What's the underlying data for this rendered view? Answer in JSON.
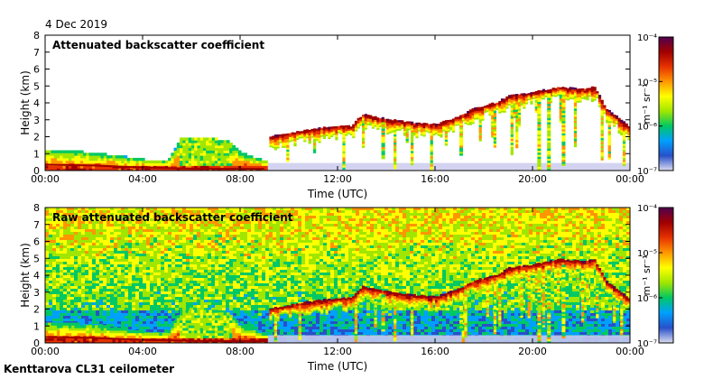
{
  "date": "4 Dec 2019",
  "footer": "Kenttarova CL31 ceilometer",
  "colors": {
    "ramp": [
      "#dcdcf0",
      "#2850c8",
      "#00a0ff",
      "#00c864",
      "#a0e600",
      "#ffff00",
      "#ff9600",
      "#e63200",
      "#a00000",
      "#500050"
    ],
    "panel_bg": "#ffffff",
    "ground_band": "#c8c8ee"
  },
  "chart_data": [
    {
      "type": "heatmap",
      "title": "Attenuated backscatter coefficient",
      "xlabel": "Time (UTC)",
      "ylabel": "Height (km)",
      "xlim": [
        0,
        24
      ],
      "ylim": [
        0,
        8
      ],
      "xticks": [
        0,
        4,
        8,
        12,
        16,
        20,
        24
      ],
      "xtick_labels": [
        "00:00",
        "04:00",
        "08:00",
        "12:00",
        "16:00",
        "20:00",
        "00:00"
      ],
      "yticks": [
        0,
        1,
        2,
        3,
        4,
        5,
        6,
        7,
        8
      ],
      "ytick_labels": [
        "0",
        "1",
        "2",
        "3",
        "4",
        "5",
        "6",
        "7",
        "8"
      ],
      "colorbar": {
        "label": "m⁻¹ sr⁻¹",
        "range": [
          -7,
          -4
        ],
        "tick_exps": [
          -7,
          -6,
          -5,
          -4
        ],
        "tick_labels": [
          "10⁻⁷",
          "10⁻⁶",
          "10⁻⁵",
          "10⁻⁴"
        ]
      },
      "cloud_layer": [
        [
          9.2,
          2.0
        ],
        [
          10,
          2.2
        ],
        [
          11,
          2.45
        ],
        [
          12,
          2.6
        ],
        [
          12.5,
          2.6
        ],
        [
          13,
          3.3
        ],
        [
          14,
          3.0
        ],
        [
          15,
          2.8
        ],
        [
          16,
          2.7
        ],
        [
          17,
          3.2
        ],
        [
          17.5,
          3.6
        ],
        [
          18,
          3.8
        ],
        [
          18.5,
          4.0
        ],
        [
          19,
          4.4
        ],
        [
          20,
          4.6
        ],
        [
          21,
          4.9
        ],
        [
          22,
          4.8
        ],
        [
          22.5,
          4.9
        ],
        [
          23,
          3.6
        ],
        [
          24,
          2.5
        ]
      ],
      "boundary_layer_top": [
        [
          0,
          1.2
        ],
        [
          1,
          1.1
        ],
        [
          2,
          1.0
        ],
        [
          3,
          0.8
        ],
        [
          4,
          0.6
        ],
        [
          5,
          0.6
        ],
        [
          5.5,
          1.8
        ],
        [
          6,
          1.8
        ],
        [
          7,
          1.8
        ],
        [
          7.5,
          1.7
        ],
        [
          8,
          1.0
        ],
        [
          9,
          0.5
        ]
      ],
      "noisy": false
    },
    {
      "type": "heatmap",
      "title": "Raw attenuated backscatter coefficient",
      "xlabel": "Time (UTC)",
      "ylabel": "Height (km)",
      "xlim": [
        0,
        24
      ],
      "ylim": [
        0,
        8
      ],
      "xticks": [
        0,
        4,
        8,
        12,
        16,
        20,
        24
      ],
      "xtick_labels": [
        "00:00",
        "04:00",
        "08:00",
        "12:00",
        "16:00",
        "20:00",
        "00:00"
      ],
      "yticks": [
        0,
        1,
        2,
        3,
        4,
        5,
        6,
        7,
        8
      ],
      "ytick_labels": [
        "0",
        "1",
        "2",
        "3",
        "4",
        "5",
        "6",
        "7",
        "8"
      ],
      "colorbar": {
        "label": "m⁻¹ sr⁻¹",
        "range": [
          -7,
          -4
        ],
        "tick_exps": [
          -7,
          -6,
          -5,
          -4
        ],
        "tick_labels": [
          "10⁻⁷",
          "10⁻⁶",
          "10⁻⁵",
          "10⁻⁴"
        ]
      },
      "cloud_layer": [
        [
          9.2,
          2.0
        ],
        [
          10,
          2.2
        ],
        [
          11,
          2.45
        ],
        [
          12,
          2.6
        ],
        [
          12.5,
          2.6
        ],
        [
          13,
          3.3
        ],
        [
          14,
          3.0
        ],
        [
          15,
          2.8
        ],
        [
          16,
          2.7
        ],
        [
          17,
          3.2
        ],
        [
          17.5,
          3.6
        ],
        [
          18,
          3.8
        ],
        [
          18.5,
          4.0
        ],
        [
          19,
          4.4
        ],
        [
          20,
          4.6
        ],
        [
          21,
          4.9
        ],
        [
          22,
          4.8
        ],
        [
          22.5,
          4.9
        ],
        [
          23,
          3.6
        ],
        [
          24,
          2.5
        ]
      ],
      "boundary_layer_top": [
        [
          0,
          1.2
        ],
        [
          1,
          1.1
        ],
        [
          2,
          1.0
        ],
        [
          3,
          0.8
        ],
        [
          4,
          0.6
        ],
        [
          5,
          0.6
        ],
        [
          5.5,
          1.8
        ],
        [
          6,
          1.8
        ],
        [
          7,
          1.8
        ],
        [
          7.5,
          1.7
        ],
        [
          8,
          1.0
        ],
        [
          9,
          0.5
        ]
      ],
      "noisy": true
    }
  ]
}
